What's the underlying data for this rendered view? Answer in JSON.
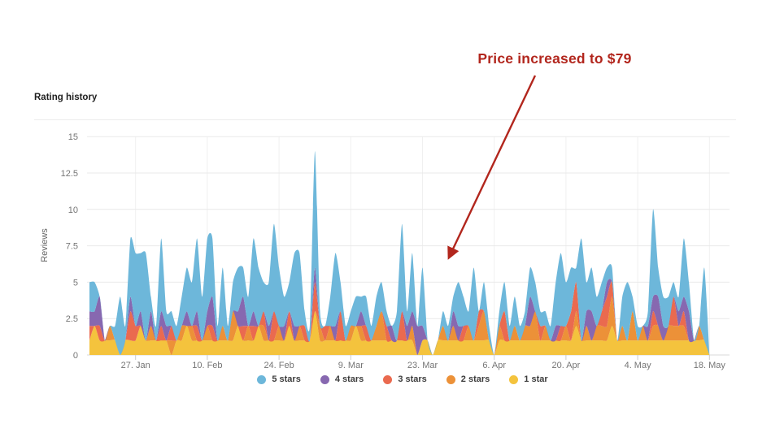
{
  "title": "Rating history",
  "annotation": {
    "text": "Price increased to $79",
    "color": "#b2261d",
    "points_to": "dip in reviews around 26.–28. Mar"
  },
  "legend": {
    "items": [
      {
        "label": "5 stars",
        "color": "#6db7da"
      },
      {
        "label": "4 stars",
        "color": "#8768b0"
      },
      {
        "label": "3 stars",
        "color": "#ea6a4f"
      },
      {
        "label": "2 stars",
        "color": "#ec9138"
      },
      {
        "label": "1 star",
        "color": "#f4c33d"
      }
    ]
  },
  "chart_data": {
    "type": "area",
    "stacked": true,
    "title": "Rating history",
    "xlabel": "",
    "ylabel": "Reviews",
    "ylim": [
      0,
      15
    ],
    "y_ticks": [
      0,
      2.5,
      5,
      7.5,
      10,
      12.5,
      15
    ],
    "x_start": "18. Jan",
    "x_end": "18. May",
    "frequency": "daily",
    "x_tick_labels": [
      "27. Jan",
      "10. Feb",
      "24. Feb",
      "9. Mar",
      "23. Mar",
      "6. Apr",
      "20. Apr",
      "4. May",
      "18. May"
    ],
    "x_tick_day_indices": [
      9,
      23,
      37,
      51,
      65,
      79,
      93,
      107,
      121
    ],
    "grid": true,
    "legend_position": "bottom",
    "stack_order_bottom_to_top": [
      "1 star",
      "2 stars",
      "3 stars",
      "4 stars",
      "5 stars"
    ],
    "series": [
      {
        "name": "5 stars",
        "color": "#6db7da",
        "values": [
          2,
          2,
          0,
          0,
          0,
          1,
          4,
          1,
          4,
          5,
          4,
          6,
          1,
          1,
          5,
          1,
          1,
          1,
          2,
          3,
          3,
          5,
          3,
          5,
          4,
          1,
          4,
          1,
          2,
          3,
          2,
          2,
          5,
          4,
          2,
          3,
          6,
          4,
          2,
          2,
          5,
          5,
          1,
          1,
          8,
          1,
          0,
          2,
          5,
          2,
          1,
          1,
          2,
          1,
          2,
          1,
          2,
          2,
          1,
          0,
          2,
          6,
          1,
          4,
          0,
          4,
          0,
          0,
          0,
          1,
          1,
          1,
          3,
          2,
          1,
          5,
          0,
          2,
          1,
          0,
          1,
          2,
          1,
          2,
          1,
          1,
          2,
          2,
          1,
          1,
          1,
          3,
          5,
          3,
          3,
          1,
          7,
          2,
          3,
          2,
          2,
          1,
          1,
          0,
          2,
          4,
          1,
          1,
          0,
          1,
          6,
          2,
          2,
          2,
          1,
          1,
          4,
          2,
          0,
          0,
          5,
          0
        ]
      },
      {
        "name": "4 stars",
        "color": "#8768b0",
        "values": [
          1,
          1,
          2,
          0,
          0,
          0,
          0,
          0,
          1,
          0,
          1,
          0,
          1,
          0,
          1,
          1,
          0,
          0,
          0,
          1,
          0,
          1,
          0,
          1,
          2,
          0,
          0,
          0,
          0,
          1,
          2,
          0,
          1,
          0,
          0,
          1,
          0,
          0,
          1,
          0,
          1,
          0,
          0,
          0,
          1,
          0,
          0,
          0,
          1,
          0,
          0,
          0,
          0,
          1,
          0,
          0,
          0,
          0,
          0,
          1,
          0,
          0,
          1,
          1,
          2,
          1,
          0,
          0,
          0,
          0,
          0,
          1,
          1,
          0,
          0,
          0,
          0,
          0,
          0,
          0,
          0,
          0,
          0,
          0,
          0,
          0,
          2,
          0,
          0,
          0,
          0,
          1,
          0,
          0,
          0,
          0,
          0,
          1,
          2,
          0,
          0,
          1,
          0,
          0,
          0,
          0,
          0,
          0,
          0,
          1,
          1,
          2,
          1,
          0,
          0,
          1,
          1,
          2,
          0,
          0,
          0,
          0
        ]
      },
      {
        "name": "3 stars",
        "color": "#ea6a4f",
        "values": [
          1,
          0,
          1,
          0,
          0,
          0,
          0,
          0,
          2,
          1,
          0,
          0,
          0,
          0,
          1,
          0,
          1,
          0,
          0,
          0,
          0,
          1,
          0,
          0,
          1,
          0,
          0,
          0,
          0,
          0,
          1,
          0,
          1,
          0,
          1,
          0,
          2,
          0,
          0,
          1,
          0,
          0,
          1,
          0,
          2,
          0,
          1,
          0,
          0,
          2,
          0,
          0,
          0,
          0,
          1,
          0,
          0,
          0,
          1,
          0,
          0,
          2,
          0,
          0,
          0,
          0,
          0,
          0,
          0,
          0,
          0,
          0,
          0,
          1,
          0,
          0,
          1,
          0,
          0,
          0,
          0,
          2,
          0,
          0,
          0,
          0,
          0,
          0,
          1,
          0,
          0,
          0,
          1,
          0,
          2,
          2,
          0,
          0,
          0,
          0,
          1,
          2,
          1,
          0,
          0,
          0,
          0,
          0,
          0,
          0,
          1,
          0,
          0,
          0,
          2,
          0,
          1,
          0,
          0,
          0,
          0,
          0
        ]
      },
      {
        "name": "2 stars",
        "color": "#ec9138",
        "values": [
          0,
          0,
          0,
          0,
          1,
          0,
          0,
          0,
          0,
          0,
          0,
          0,
          1,
          0,
          0,
          0,
          1,
          0,
          1,
          0,
          1,
          0,
          0,
          1,
          0,
          0,
          1,
          0,
          2,
          0,
          0,
          1,
          0,
          0,
          1,
          0,
          0,
          1,
          0,
          0,
          0,
          1,
          0,
          0,
          0,
          1,
          0,
          1,
          0,
          0,
          0,
          1,
          0,
          1,
          0,
          0,
          1,
          2,
          0,
          0,
          0,
          0,
          0,
          1,
          0,
          0,
          0,
          0,
          0,
          1,
          0,
          1,
          0,
          0,
          1,
          0,
          1,
          2,
          0,
          0,
          1,
          0,
          0,
          1,
          0,
          1,
          1,
          2,
          0,
          1,
          0,
          0,
          0,
          1,
          0,
          1,
          0,
          1,
          0,
          1,
          1,
          1,
          2,
          0,
          1,
          0,
          2,
          0,
          1,
          0,
          1,
          1,
          0,
          1,
          1,
          1,
          1,
          0,
          0,
          1,
          0,
          0
        ]
      },
      {
        "name": "1 star",
        "color": "#f4c33d",
        "values": [
          1,
          2,
          1,
          1,
          1,
          1,
          0,
          1,
          1,
          1,
          2,
          1,
          1,
          1,
          1,
          1,
          0,
          1,
          1,
          2,
          1,
          1,
          1,
          1,
          1,
          1,
          1,
          1,
          1,
          2,
          1,
          1,
          1,
          2,
          1,
          1,
          1,
          1,
          1,
          2,
          1,
          1,
          1,
          1,
          3,
          1,
          1,
          1,
          1,
          1,
          1,
          1,
          2,
          1,
          1,
          1,
          1,
          1,
          1,
          1,
          1,
          1,
          1,
          1,
          0,
          1,
          1,
          0,
          1,
          1,
          1,
          1,
          1,
          1,
          1,
          1,
          1,
          1,
          1,
          0,
          1,
          1,
          1,
          1,
          1,
          1,
          1,
          1,
          1,
          1,
          1,
          1,
          1,
          1,
          1,
          2,
          1,
          1,
          1,
          1,
          1,
          1,
          2,
          1,
          1,
          1,
          1,
          1,
          1,
          1,
          1,
          1,
          1,
          1,
          1,
          1,
          1,
          1,
          1,
          1,
          1,
          0
        ]
      }
    ],
    "annotation": {
      "text": "Price increased to $79",
      "points_to": "dip to 0 reviews shortly after 23. Mar"
    }
  }
}
